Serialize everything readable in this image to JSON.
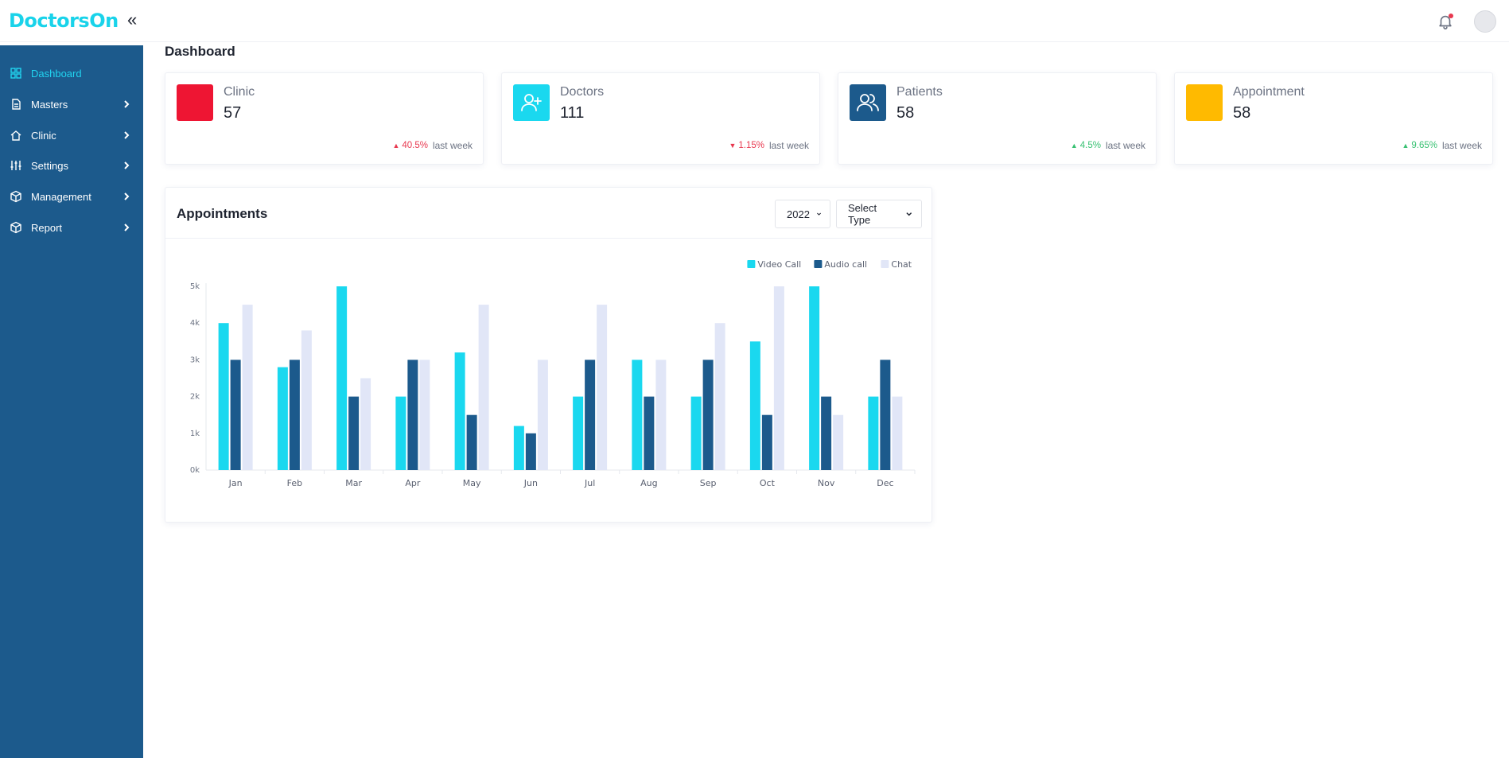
{
  "app": {
    "logo_text": "DoctorsOn"
  },
  "header": {
    "collapse_icon": "double-chevron-left-icon",
    "notification_icon": "bell-icon",
    "avatar_icon": "user-avatar"
  },
  "sidebar": {
    "items": [
      {
        "label": "Dashboard",
        "icon": "grid-icon",
        "active": true,
        "has_submenu": false
      },
      {
        "label": "Masters",
        "icon": "document-icon",
        "active": false,
        "has_submenu": true
      },
      {
        "label": "Clinic",
        "icon": "home-icon",
        "active": false,
        "has_submenu": true
      },
      {
        "label": "Settings",
        "icon": "sliders-icon",
        "active": false,
        "has_submenu": true
      },
      {
        "label": "Management",
        "icon": "box-icon",
        "active": false,
        "has_submenu": true
      },
      {
        "label": "Report",
        "icon": "box-icon",
        "active": false,
        "has_submenu": true
      }
    ]
  },
  "page": {
    "title": "Dashboard"
  },
  "stats": [
    {
      "label": "Clinic",
      "value": "57",
      "trend": "40.5%",
      "direction": "up",
      "trend_color": "#e8384f",
      "suffix": "last week",
      "icon_color": "#ee1533",
      "icon": ""
    },
    {
      "label": "Doctors",
      "value": "111",
      "trend": "1.15%",
      "direction": "down",
      "trend_color": "#e8384f",
      "suffix": "last week",
      "icon_color": "#1ad8ef",
      "icon": "user-plus-icon"
    },
    {
      "label": "Patients",
      "value": "58",
      "trend": "4.5%",
      "direction": "up",
      "trend_color": "#38c172",
      "suffix": "last week",
      "icon_color": "#1c5a8c",
      "icon": "users-icon"
    },
    {
      "label": "Appointment",
      "value": "58",
      "trend": "9.65%",
      "direction": "up",
      "trend_color": "#38c172",
      "suffix": "last week",
      "icon_color": "#ffba00",
      "icon": ""
    }
  ],
  "appointments": {
    "title": "Appointments",
    "year_select": "2022",
    "type_select": "Select Type"
  },
  "chart_data": {
    "type": "bar",
    "title": "",
    "xlabel": "",
    "ylabel": "",
    "categories": [
      "Jan",
      "Feb",
      "Mar",
      "Apr",
      "May",
      "Jun",
      "Jul",
      "Aug",
      "Sep",
      "Oct",
      "Nov",
      "Dec"
    ],
    "series": [
      {
        "name": "Video Call",
        "color": "#1ad8ef",
        "values": [
          4000,
          2800,
          5000,
          2000,
          3200,
          1200,
          2000,
          3000,
          2000,
          3500,
          5000,
          2000
        ]
      },
      {
        "name": "Audio call",
        "color": "#1c5a8c",
        "values": [
          3000,
          3000,
          2000,
          3000,
          1500,
          1000,
          3000,
          2000,
          3000,
          1500,
          2000,
          3000
        ]
      },
      {
        "name": "Chat",
        "color": "#e1e6f7",
        "values": [
          4500,
          3800,
          2500,
          3000,
          4500,
          3000,
          4500,
          3000,
          4000,
          5000,
          1500,
          2000
        ]
      }
    ],
    "ylim": [
      0,
      5000
    ],
    "yticks": [
      "0k",
      "1k",
      "2k",
      "3k",
      "4k",
      "5k"
    ],
    "grid": false,
    "legend_position": "top-right"
  }
}
